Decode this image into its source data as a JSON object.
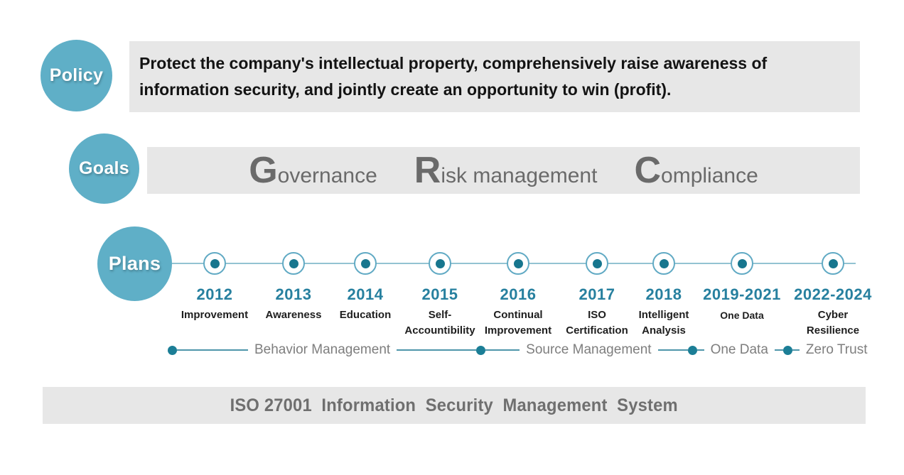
{
  "policy": {
    "badge": "Policy",
    "line1": "Protect the company's intellectual property, comprehensively raise awareness of",
    "line2": "information security, and jointly create an opportunity to win (profit)."
  },
  "goals": {
    "badge": "Goals",
    "items": [
      {
        "initial": "G",
        "rest": "overnance"
      },
      {
        "initial": "R",
        "rest": "isk management"
      },
      {
        "initial": "C",
        "rest": "ompliance"
      }
    ]
  },
  "plans": {
    "badge": "Plans",
    "milestones": [
      {
        "year": "2012",
        "title1": "Improvement",
        "title2": ""
      },
      {
        "year": "2013",
        "title1": "Awareness",
        "title2": ""
      },
      {
        "year": "2014",
        "title1": "Education",
        "title2": ""
      },
      {
        "year": "2015",
        "title1": "Self-",
        "title2": "Accountibility"
      },
      {
        "year": "2016",
        "title1": "Continual",
        "title2": "Improvement"
      },
      {
        "year": "2017",
        "title1": "ISO",
        "title2": "Certification"
      },
      {
        "year": "2018",
        "title1": "Intelligent",
        "title2": "Analysis"
      },
      {
        "year": "2019-2021",
        "title1": "One Data",
        "title2": ""
      },
      {
        "year": "2022-2024",
        "title1": "Cyber",
        "title2": "Resilience"
      }
    ],
    "phases": [
      {
        "label": "Behavior Management"
      },
      {
        "label": "Source Management"
      },
      {
        "label": "One Data"
      },
      {
        "label": "Zero Trust"
      }
    ]
  },
  "footer": {
    "title": "ISO 27001  Information  Security  Management  System"
  },
  "colors": {
    "badge_teal": "#5fafc7",
    "dot_teal_dark": "#17768e",
    "year_teal": "#27809f",
    "panel_gray": "#e7e7e7",
    "grc_text_gray": "#6a6a6a",
    "phase_text_gray": "#7e7e7e",
    "footer_text_gray": "#6f6f6f"
  }
}
